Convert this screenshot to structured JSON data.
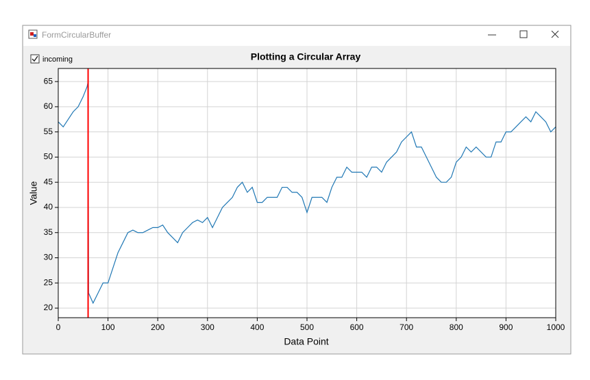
{
  "window": {
    "title": "FormCircularBuffer"
  },
  "checkbox": {
    "label": "incoming",
    "checked": true
  },
  "chart_data": {
    "type": "line",
    "title": "Plotting a Circular Array",
    "x_label": "Data Point",
    "y_label": "Value",
    "x": [
      0,
      10,
      20,
      30,
      40,
      50,
      58,
      60,
      61,
      70,
      80,
      90,
      100,
      110,
      120,
      130,
      140,
      150,
      160,
      170,
      180,
      190,
      200,
      210,
      220,
      230,
      240,
      250,
      260,
      270,
      280,
      290,
      300,
      310,
      320,
      330,
      340,
      350,
      360,
      370,
      380,
      390,
      400,
      410,
      420,
      430,
      440,
      450,
      460,
      470,
      480,
      490,
      500,
      510,
      520,
      530,
      540,
      550,
      560,
      570,
      580,
      590,
      600,
      610,
      620,
      630,
      640,
      650,
      660,
      670,
      680,
      690,
      700,
      710,
      720,
      730,
      740,
      750,
      760,
      770,
      780,
      790,
      800,
      810,
      820,
      830,
      840,
      850,
      860,
      870,
      880,
      890,
      900,
      910,
      920,
      930,
      940,
      950,
      960,
      970,
      980,
      990,
      1000
    ],
    "series": [
      {
        "name": "incoming",
        "color": "#1f77b4",
        "values": [
          57,
          56,
          57.5,
          59,
          60,
          62,
          64,
          65,
          23,
          21,
          23,
          25,
          25,
          28,
          31,
          33,
          35,
          35.5,
          35,
          35,
          35.5,
          36,
          36,
          36.5,
          35,
          34,
          33,
          35,
          36,
          37,
          37.5,
          37,
          38,
          36,
          38,
          40,
          41,
          42,
          44,
          45,
          43,
          44,
          41,
          41,
          42,
          42,
          42,
          44,
          44,
          43,
          43,
          42,
          39,
          42,
          42,
          42,
          41,
          44,
          46,
          46,
          48,
          47,
          47,
          47,
          46,
          48,
          48,
          47,
          49,
          50,
          51,
          53,
          54,
          55,
          52,
          52,
          50,
          48,
          46,
          45,
          45,
          46,
          49,
          50,
          52,
          51,
          52,
          51,
          50,
          50,
          53,
          53,
          55,
          55,
          56,
          57,
          58,
          57,
          59,
          58,
          57,
          55,
          56
        ]
      }
    ],
    "marker_x": 60,
    "marker_color": "#ff0000",
    "xlim": [
      0,
      1000
    ],
    "xticks": [
      0,
      100,
      200,
      300,
      400,
      500,
      600,
      700,
      800,
      900,
      1000
    ],
    "ylim": [
      18.1,
      67.6
    ],
    "yticks": [
      20,
      25,
      30,
      35,
      40,
      45,
      50,
      55,
      60,
      65
    ],
    "grid": true
  }
}
